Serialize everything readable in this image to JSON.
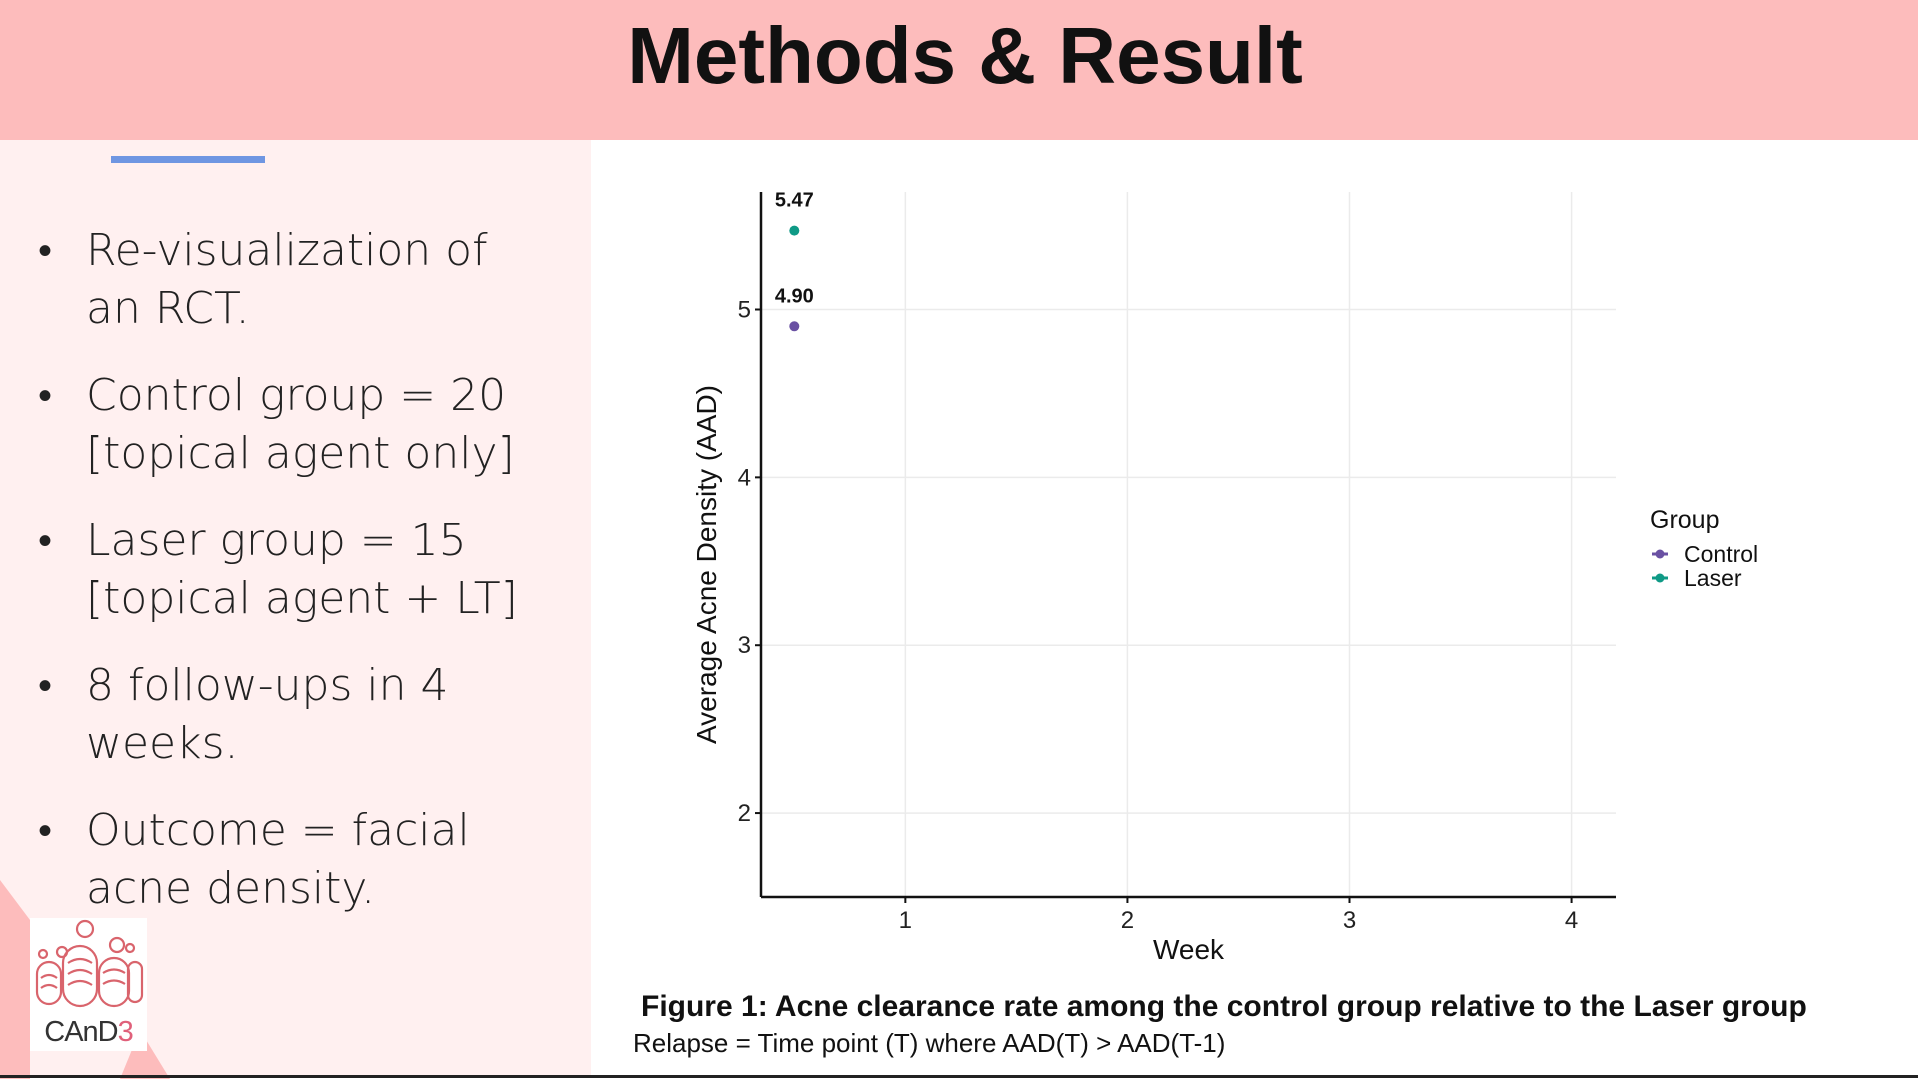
{
  "slide": {
    "title": "Methods & Result",
    "bullets": [
      {
        "line1": "Re-visualization of",
        "line2": "an RCT."
      },
      {
        "line1": "Control group = 20",
        "line2": "[topical agent only]"
      },
      {
        "line1": "Laser group = 15",
        "line2": "[topical agent + LT]"
      },
      {
        "line1": "8 follow-ups in 4",
        "line2": "weeks."
      },
      {
        "line1": "Outcome = facial",
        "line2": "acne density."
      }
    ],
    "logo_text_main": "CAnD",
    "logo_text_accent": "3",
    "caption": "Figure 1: Acne clearance rate among the control group relative to the Laser group",
    "subcaption": "Relapse = Time point (T) where AAD(T) > AAD(T-1)"
  },
  "colors": {
    "header": "#fdbcbc",
    "left_panel": "#fff0f0",
    "accent_bar": "#6f96e2",
    "control": "#6a51a3",
    "laser": "#0f9a86"
  },
  "chart_data": {
    "type": "scatter",
    "xlabel": "Week",
    "ylabel": "Average Acne Density (AAD)",
    "xlim": [
      0.35,
      4.2
    ],
    "ylim": [
      1.5,
      5.7
    ],
    "xticks": [
      1,
      2,
      3,
      4
    ],
    "yticks": [
      2,
      3,
      4,
      5
    ],
    "grid": true,
    "legend_title": "Group",
    "legend_position": "right",
    "series": [
      {
        "name": "Control",
        "color": "#6a51a3",
        "points": [
          {
            "x": 0.5,
            "y": 4.9,
            "label": "4.90"
          }
        ]
      },
      {
        "name": "Laser",
        "color": "#0f9a86",
        "points": [
          {
            "x": 0.5,
            "y": 5.47,
            "label": "5.47"
          }
        ]
      }
    ]
  }
}
